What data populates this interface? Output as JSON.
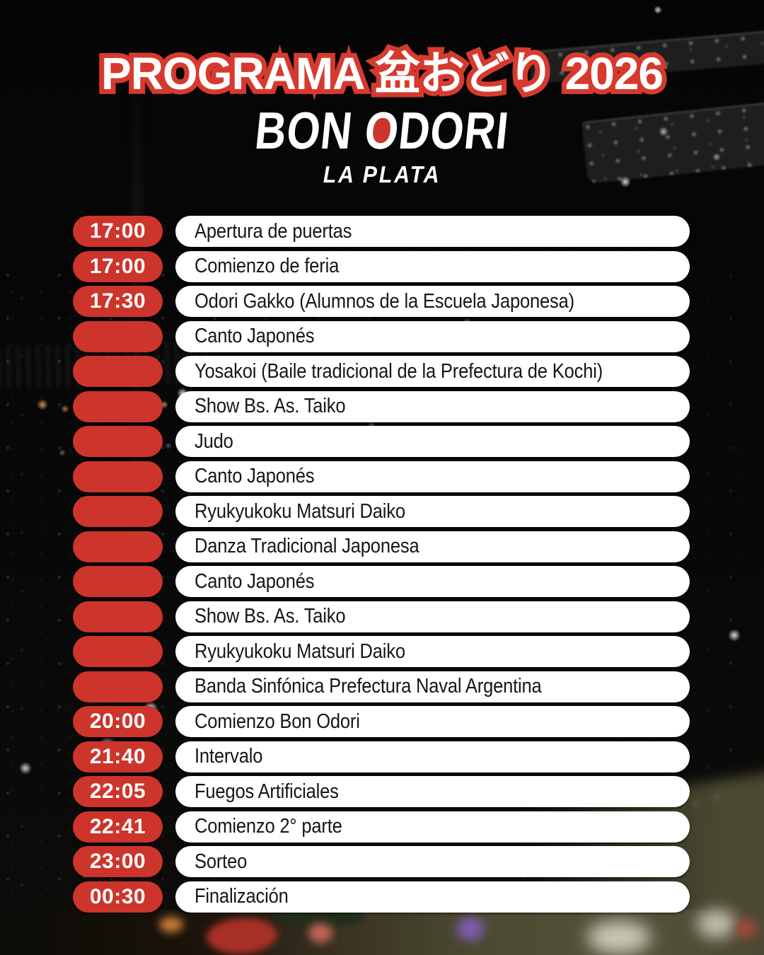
{
  "colors": {
    "title_stroke_red": "#d63a2e",
    "pill_red": "#cd342b",
    "bar_white": "#ffffff",
    "event_text": "#161616",
    "title_fill": "#ffffff"
  },
  "header": {
    "program_title": "PROGRAMA 盆おどり 2026",
    "event_name_part1": "BON ",
    "event_name_o": "O",
    "event_name_part2": "DORI",
    "location": "LA PLATA"
  },
  "schedule": {
    "rows": [
      {
        "time": "17:00",
        "label": "Apertura de puertas"
      },
      {
        "time": "17:00",
        "label": "Comienzo de feria"
      },
      {
        "time": "17:30",
        "label": "Odori Gakko (Alumnos de la Escuela Japonesa)"
      },
      {
        "time": "",
        "label": "Canto Japonés"
      },
      {
        "time": "",
        "label": "Yosakoi (Baile tradicional de la Prefectura de Kochi)"
      },
      {
        "time": "",
        "label": "Show Bs. As. Taiko"
      },
      {
        "time": "",
        "label": "Judo"
      },
      {
        "time": "",
        "label": "Canto Japonés"
      },
      {
        "time": "",
        "label": "Ryukyukoku Matsuri Daiko"
      },
      {
        "time": "",
        "label": "Danza Tradicional Japonesa"
      },
      {
        "time": "",
        "label": "Canto Japonés"
      },
      {
        "time": "",
        "label": "Show Bs. As. Taiko"
      },
      {
        "time": "",
        "label": "Ryukyukoku Matsuri Daiko"
      },
      {
        "time": "",
        "label": "Banda Sinfónica Prefectura Naval Argentina"
      },
      {
        "time": "20:00",
        "label": "Comienzo Bon Odori"
      },
      {
        "time": "21:40",
        "label": "Intervalo"
      },
      {
        "time": "22:05",
        "label": "Fuegos Artificiales"
      },
      {
        "time": "22:41",
        "label": "Comienzo 2° parte"
      },
      {
        "time": "23:00",
        "label": "Sorteo"
      },
      {
        "time": "00:30",
        "label": "Finalización"
      }
    ]
  }
}
